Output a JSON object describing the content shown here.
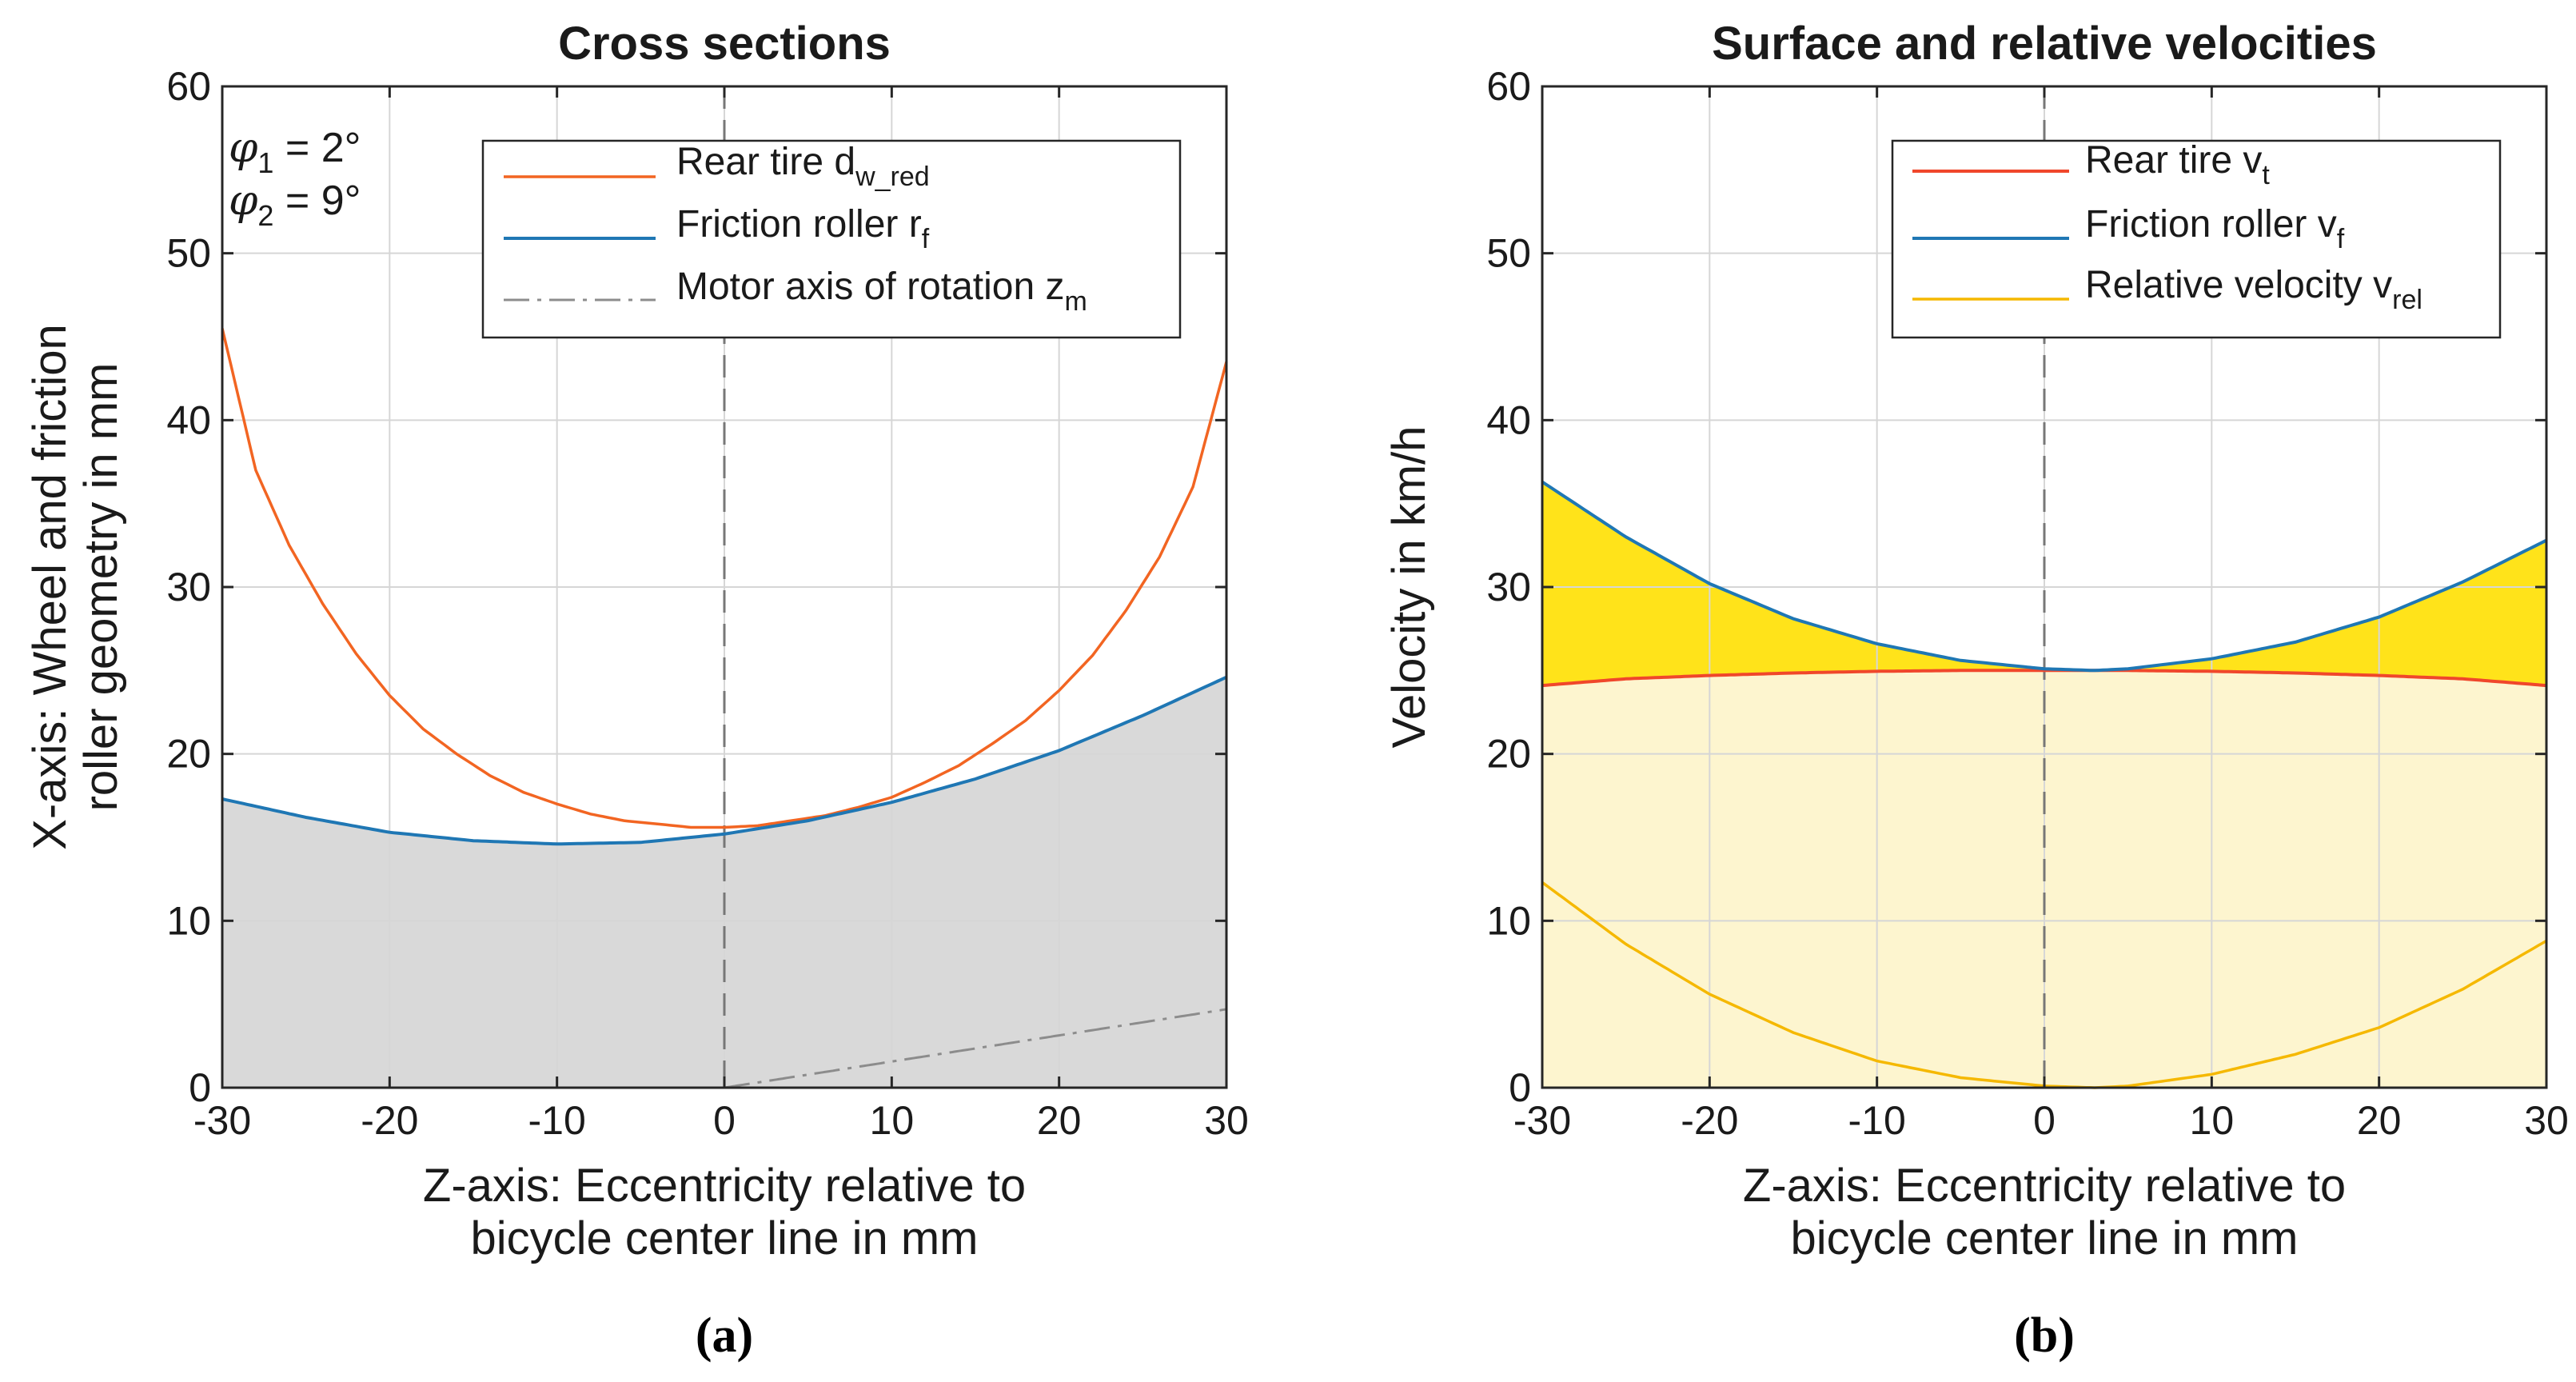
{
  "chart_data": [
    {
      "type": "line",
      "panel_label": "(a)",
      "title": "Cross sections",
      "xlabel": [
        "Z-axis: Eccentricity relative to",
        "bicycle center line in mm"
      ],
      "ylabel": [
        "X-axis: Wheel and friction",
        "roller geometry in mm"
      ],
      "xlim": [
        -30,
        30
      ],
      "ylim": [
        0,
        60
      ],
      "xticks": [
        -30,
        -20,
        -10,
        0,
        10,
        20,
        30
      ],
      "yticks": [
        0,
        10,
        20,
        30,
        40,
        50,
        60
      ],
      "xtick_labels": [
        "-30",
        "-20",
        "-10",
        "0",
        "10",
        "20",
        "30"
      ],
      "ytick_labels": [
        "0",
        "10",
        "20",
        "30",
        "40",
        "50",
        "60"
      ],
      "grid": true,
      "vline_x": 0,
      "fill_under_series": "Friction roller",
      "fill_color": "#d9d9d9",
      "annotation": {
        "phi1": {
          "symbol": "φ",
          "sub": "1",
          "text": " = 2°"
        },
        "phi2": {
          "symbol": "φ",
          "sub": "2",
          "text": " = 9°"
        }
      },
      "legend": {
        "position": "top-right",
        "entries": [
          {
            "text": "Rear tire d",
            "sub": "w_red"
          },
          {
            "text": "Friction roller r",
            "sub": "f"
          },
          {
            "text": "Motor axis of rotation z",
            "sub": "m"
          }
        ]
      },
      "series": [
        {
          "name": "Rear tire",
          "color": "#f26522",
          "style": "solid",
          "x": [
            -30,
            -28,
            -26,
            -24,
            -22,
            -20,
            -18,
            -16,
            -14,
            -12,
            -10,
            -8,
            -6,
            -4,
            -2,
            0,
            2,
            4,
            6,
            8,
            10,
            12,
            14,
            16,
            18,
            20,
            22,
            24,
            26,
            28,
            30
          ],
          "y": [
            45.5,
            37.0,
            32.5,
            29.0,
            26.0,
            23.5,
            21.5,
            20.0,
            18.7,
            17.7,
            17.0,
            16.4,
            16.0,
            15.8,
            15.6,
            15.6,
            15.7,
            16.0,
            16.3,
            16.8,
            17.4,
            18.3,
            19.3,
            20.6,
            22.0,
            23.8,
            25.9,
            28.6,
            31.8,
            36.0,
            43.5
          ]
        },
        {
          "name": "Friction roller",
          "color": "#1f77b4",
          "style": "solid",
          "x": [
            -30,
            -25,
            -20,
            -15,
            -10,
            -5,
            0,
            5,
            10,
            15,
            20,
            25,
            30
          ],
          "y": [
            17.3,
            16.2,
            15.3,
            14.8,
            14.6,
            14.7,
            15.2,
            16.0,
            17.1,
            18.5,
            20.2,
            22.3,
            24.6
          ]
        },
        {
          "name": "Motor axis of rotation",
          "color": "#8c8c8c",
          "style": "dashdot",
          "x": [
            0,
            30
          ],
          "y": [
            0,
            4.7
          ]
        }
      ]
    },
    {
      "type": "line",
      "panel_label": "(b)",
      "title": "Surface and relative velocities",
      "xlabel": [
        "Z-axis: Eccentricity relative to",
        "bicycle center line in mm"
      ],
      "ylabel": [
        "Velocity in km/h"
      ],
      "xlim": [
        -30,
        30
      ],
      "ylim": [
        0,
        60
      ],
      "xticks": [
        -30,
        -20,
        -10,
        0,
        10,
        20,
        30
      ],
      "yticks": [
        0,
        10,
        20,
        30,
        40,
        50,
        60
      ],
      "xtick_labels": [
        "-30",
        "-20",
        "-10",
        "0",
        "10",
        "20",
        "30"
      ],
      "ytick_labels": [
        "0",
        "10",
        "20",
        "30",
        "40",
        "50",
        "60"
      ],
      "grid": true,
      "vline_x": 0,
      "fill_light_color": "#fdf5cf",
      "fill_gap_color": "#ffe31a",
      "legend": {
        "position": "top-right",
        "entries": [
          {
            "text": "Rear tire v",
            "sub": "t"
          },
          {
            "text": "Friction roller v",
            "sub": "f"
          },
          {
            "text": "Relative velocity v",
            "sub": "rel"
          }
        ]
      },
      "series": [
        {
          "name": "Rear tire",
          "color": "#f0472b",
          "style": "solid",
          "x": [
            -30,
            -25,
            -20,
            -15,
            -10,
            -5,
            0,
            5,
            10,
            15,
            20,
            25,
            30
          ],
          "y": [
            24.1,
            24.5,
            24.7,
            24.85,
            24.95,
            25.0,
            25.0,
            25.0,
            24.95,
            24.85,
            24.7,
            24.5,
            24.1
          ]
        },
        {
          "name": "Friction roller",
          "color": "#1f77b4",
          "style": "solid",
          "x": [
            -30,
            -25,
            -20,
            -15,
            -10,
            -5,
            0,
            3,
            5,
            10,
            15,
            20,
            25,
            30
          ],
          "y": [
            36.3,
            33.0,
            30.2,
            28.1,
            26.6,
            25.6,
            25.1,
            25.0,
            25.1,
            25.7,
            26.7,
            28.2,
            30.3,
            32.8
          ]
        },
        {
          "name": "Relative velocity",
          "color": "#f5b800",
          "style": "solid",
          "x": [
            -30,
            -25,
            -20,
            -15,
            -10,
            -5,
            0,
            3,
            5,
            10,
            15,
            20,
            25,
            30
          ],
          "y": [
            12.3,
            8.6,
            5.6,
            3.3,
            1.6,
            0.6,
            0.1,
            0.0,
            0.1,
            0.8,
            2.0,
            3.6,
            5.9,
            8.8
          ]
        }
      ]
    }
  ]
}
